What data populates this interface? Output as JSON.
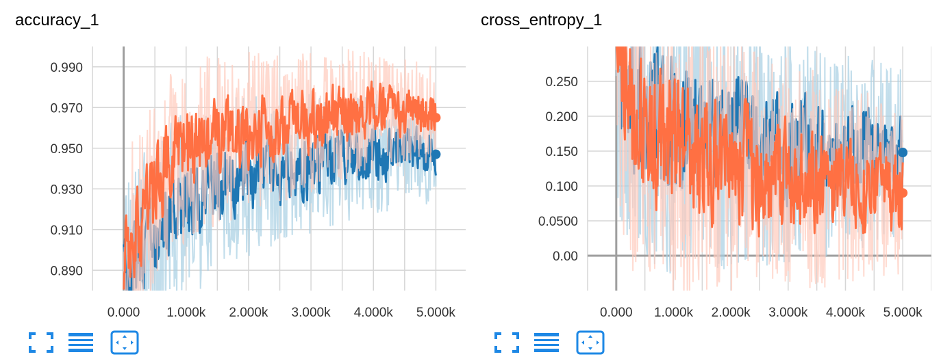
{
  "charts": [
    {
      "id": "accuracy",
      "title": "accuracy_1",
      "chart_data": {
        "type": "line",
        "title": "accuracy_1",
        "xlabel": "",
        "ylabel": "",
        "xlim": [
          -500,
          5500
        ],
        "ylim": [
          0.88,
          1.0
        ],
        "x_ticks": [
          0,
          1000,
          2000,
          3000,
          4000,
          5000
        ],
        "x_tick_labels": [
          "0.000",
          "1.000k",
          "2.000k",
          "3.000k",
          "4.000k",
          "5.000k"
        ],
        "y_ticks": [
          0.89,
          0.91,
          0.93,
          0.95,
          0.97,
          0.99
        ],
        "y_tick_labels": [
          "0.890",
          "0.910",
          "0.930",
          "0.950",
          "0.970",
          "0.990"
        ],
        "grid": true,
        "series": [
          {
            "color": "#1f77b4",
            "raw_color": "#a6cee3",
            "x": [
              0,
              200,
              400,
              600,
              800,
              1000,
              1200,
              1400,
              1600,
              1800,
              2000,
              2200,
              2400,
              2600,
              2800,
              3000,
              3200,
              3400,
              3600,
              3800,
              4000,
              4200,
              4400,
              4600,
              4800,
              5000
            ],
            "values": [
              0.885,
              0.896,
              0.905,
              0.912,
              0.918,
              0.925,
              0.923,
              0.93,
              0.932,
              0.935,
              0.936,
              0.939,
              0.937,
              0.941,
              0.94,
              0.942,
              0.944,
              0.943,
              0.946,
              0.945,
              0.948,
              0.947,
              0.95,
              0.949,
              0.948,
              0.947
            ]
          },
          {
            "color": "#ff7043",
            "raw_color": "#ffcbbc",
            "x": [
              0,
              200,
              400,
              600,
              800,
              1000,
              1200,
              1400,
              1600,
              1800,
              2000,
              2200,
              2400,
              2600,
              2800,
              3000,
              3200,
              3400,
              3600,
              3800,
              4000,
              4200,
              4400,
              4600,
              4800,
              5000
            ],
            "values": [
              0.895,
              0.91,
              0.922,
              0.935,
              0.944,
              0.948,
              0.951,
              0.953,
              0.955,
              0.956,
              0.958,
              0.959,
              0.96,
              0.961,
              0.962,
              0.963,
              0.964,
              0.966,
              0.967,
              0.968,
              0.969,
              0.97,
              0.969,
              0.968,
              0.967,
              0.965
            ]
          }
        ]
      }
    },
    {
      "id": "cross-entropy",
      "title": "cross_entropy_1",
      "chart_data": {
        "type": "line",
        "title": "cross_entropy_1",
        "xlabel": "",
        "ylabel": "",
        "xlim": [
          -500,
          5500
        ],
        "ylim": [
          -0.05,
          0.3
        ],
        "x_ticks": [
          0,
          1000,
          2000,
          3000,
          4000,
          5000
        ],
        "x_tick_labels": [
          "0.000",
          "1.000k",
          "2.000k",
          "3.000k",
          "4.000k",
          "5.000k"
        ],
        "y_ticks": [
          0.0,
          0.05,
          0.1,
          0.15,
          0.2,
          0.25
        ],
        "y_tick_labels": [
          "0.00",
          "0.0500",
          "0.100",
          "0.150",
          "0.200",
          "0.250"
        ],
        "grid": true,
        "series": [
          {
            "color": "#1f77b4",
            "raw_color": "#a6cee3",
            "x": [
              0,
              200,
              400,
              600,
              800,
              1000,
              1200,
              1400,
              1600,
              1800,
              2000,
              2200,
              2400,
              2600,
              2800,
              3000,
              3200,
              3400,
              3600,
              3800,
              4000,
              4200,
              4400,
              4600,
              4800,
              5000
            ],
            "values": [
              0.31,
              0.24,
              0.215,
              0.205,
              0.198,
              0.192,
              0.188,
              0.183,
              0.178,
              0.175,
              0.172,
              0.168,
              0.165,
              0.162,
              0.16,
              0.158,
              0.156,
              0.154,
              0.152,
              0.15,
              0.149,
              0.148,
              0.147,
              0.146,
              0.147,
              0.148
            ]
          },
          {
            "color": "#ff7043",
            "raw_color": "#ffcbbc",
            "x": [
              0,
              200,
              400,
              600,
              800,
              1000,
              1200,
              1400,
              1600,
              1800,
              2000,
              2200,
              2400,
              2600,
              2800,
              3000,
              3200,
              3400,
              3600,
              3800,
              4000,
              4200,
              4400,
              4600,
              4800,
              5000
            ],
            "values": [
              0.3,
              0.22,
              0.19,
              0.175,
              0.165,
              0.155,
              0.148,
              0.142,
              0.137,
              0.132,
              0.128,
              0.125,
              0.122,
              0.119,
              0.116,
              0.113,
              0.11,
              0.108,
              0.106,
              0.104,
              0.102,
              0.1,
              0.098,
              0.096,
              0.093,
              0.09
            ]
          }
        ]
      }
    }
  ],
  "toolbar_icons": [
    "fullscreen-icon",
    "list-icon",
    "fit-domain-icon"
  ],
  "colors": {
    "accent": "#1e88e5",
    "grid": "#d6d6d6",
    "axis": "#9e9e9e"
  }
}
